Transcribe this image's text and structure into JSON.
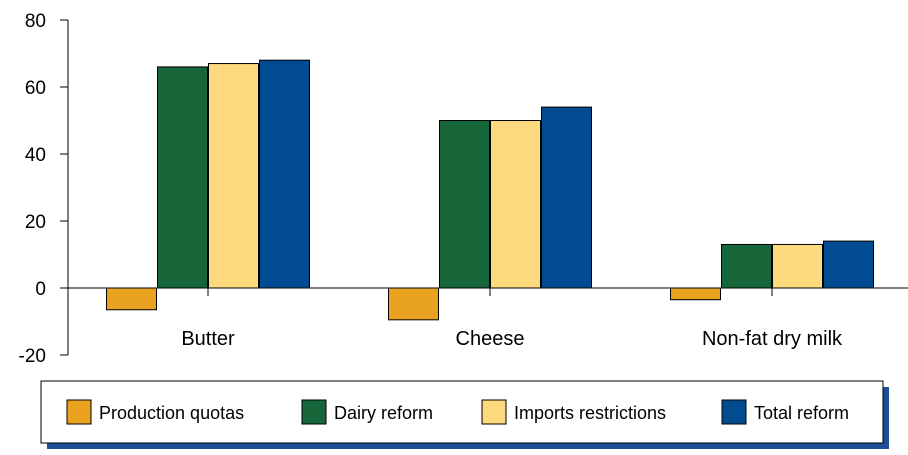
{
  "chart_data": {
    "type": "bar",
    "title": "",
    "xlabel": "",
    "ylabel": "",
    "ylim": [
      -20,
      80
    ],
    "yticks": [
      -20,
      0,
      20,
      40,
      60,
      80
    ],
    "ytick_labels": [
      "-20",
      "0",
      "20",
      "40",
      "60",
      "80"
    ],
    "categories": [
      "Butter",
      "Cheese",
      "Non-fat dry milk"
    ],
    "series": [
      {
        "name": "Production quotas",
        "color": "#E9A321",
        "values": [
          -6.5,
          -9.5,
          -3.5
        ]
      },
      {
        "name": "Dairy reform",
        "color": "#17663A",
        "values": [
          66,
          50,
          13
        ]
      },
      {
        "name": "Imports restrictions",
        "color": "#FDDA7E",
        "values": [
          67,
          50,
          13
        ]
      },
      {
        "name": "Total reform",
        "color": "#014B91",
        "values": [
          68,
          54,
          14
        ]
      }
    ],
    "grid": false,
    "legend_position": "bottom",
    "legend_shadow_color": "#1E4F95"
  }
}
